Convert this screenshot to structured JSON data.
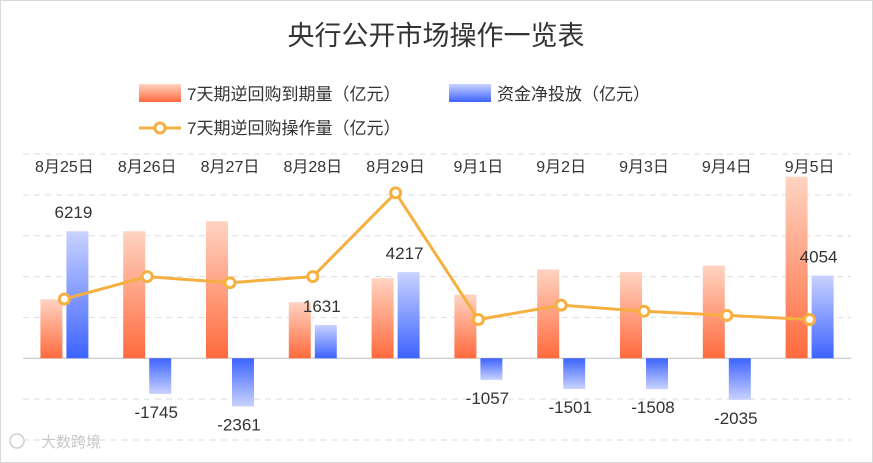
{
  "chart_data": {
    "type": "bar",
    "title": "央行公开市场操作一览表",
    "categories": [
      "8月25日",
      "8月26日",
      "8月27日",
      "8月28日",
      "8月29日",
      "9月1日",
      "9月2日",
      "9月3日",
      "9月4日",
      "9月5日"
    ],
    "series": [
      {
        "name": "7天期逆回购到期量（亿元）",
        "kind": "bar",
        "color": "#ff6a3d",
        "values": [
          2890,
          6220,
          6710,
          2750,
          3920,
          3120,
          4350,
          4220,
          4540,
          8890
        ]
      },
      {
        "name": "资金净投放（亿元）",
        "kind": "bar",
        "color": "#3d63ff",
        "values": [
          6219,
          -1745,
          -2361,
          1631,
          4217,
          -1057,
          -1501,
          -1508,
          -2035,
          4054
        ]
      },
      {
        "name": "7天期逆回购操作量（亿元）",
        "kind": "line",
        "color": "#f5b041",
        "values": [
          2900,
          4000,
          3700,
          4000,
          8100,
          1900,
          2600,
          2300,
          2100,
          1900
        ]
      }
    ],
    "labeled_series": "资金净投放（亿元）",
    "ylim": [
      -4000,
      10000
    ],
    "grid": true,
    "legend_position": "top"
  },
  "watermark": "大数跨境"
}
